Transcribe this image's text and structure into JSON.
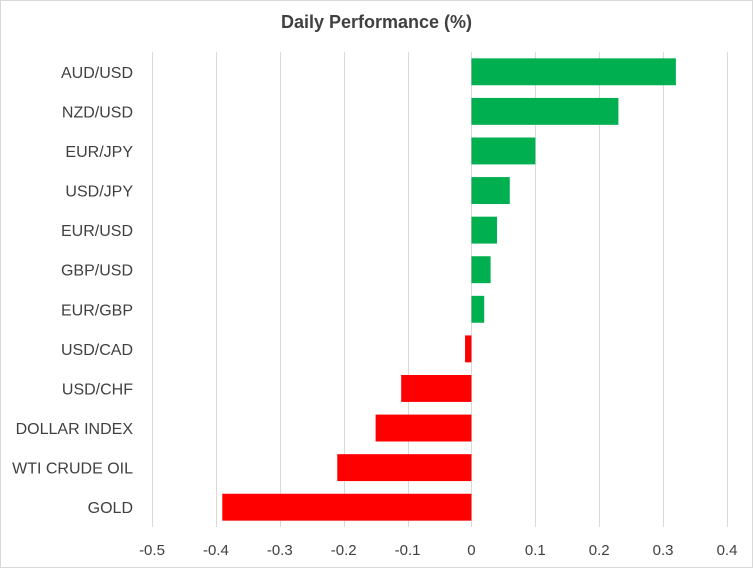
{
  "chart_data": {
    "type": "bar",
    "orientation": "horizontal",
    "title": "Daily Performance (%)",
    "xlabel": "",
    "ylabel": "",
    "xlim": [
      -0.5,
      0.4
    ],
    "xticks": [
      -0.5,
      -0.4,
      -0.3,
      -0.2,
      -0.1,
      0,
      0.1,
      0.2,
      0.3,
      0.4
    ],
    "xtick_labels": [
      "-0.5",
      "-0.4",
      "-0.3",
      "-0.2",
      "-0.1",
      "0",
      "0.1",
      "0.2",
      "0.3",
      "0.4"
    ],
    "grid": "vertical",
    "legend": "none",
    "categories": [
      "AUD/USD",
      "NZD/USD",
      "EUR/JPY",
      "USD/JPY",
      "EUR/USD",
      "GBP/USD",
      "EUR/GBP",
      "USD/CAD",
      "USD/CHF",
      "DOLLAR INDEX",
      "WTI CRUDE OIL",
      "GOLD"
    ],
    "values": [
      0.32,
      0.23,
      0.1,
      0.06,
      0.04,
      0.03,
      0.02,
      -0.01,
      -0.11,
      -0.15,
      -0.21,
      -0.39
    ],
    "colors": {
      "positive": "#00b050",
      "negative": "#ff0000"
    }
  }
}
